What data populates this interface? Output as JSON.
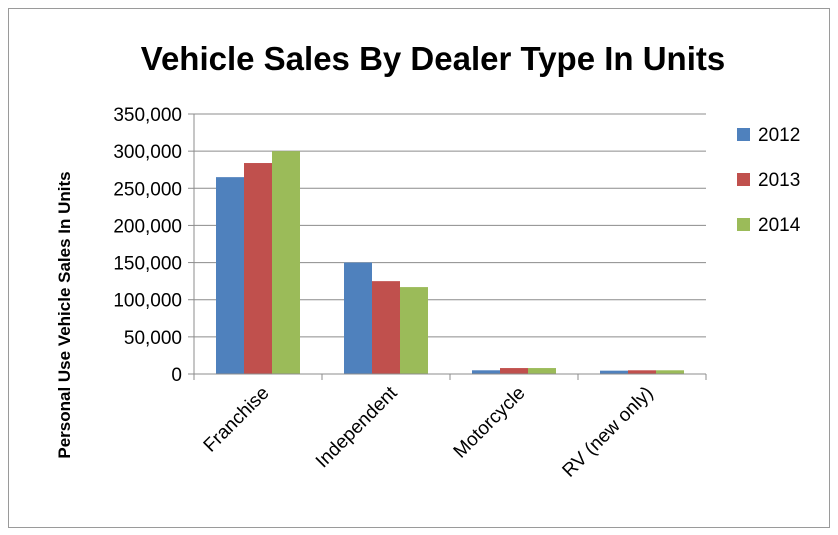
{
  "chart_data": {
    "type": "bar",
    "title": "Vehicle Sales By Dealer Type In Units",
    "xlabel": "",
    "ylabel": "Personal Use Vehicle Sales In Units",
    "categories": [
      "Franchise",
      "Independent",
      "Motorcycle",
      "RV (new only)"
    ],
    "series": [
      {
        "name": "2012",
        "color": "#4f81bd",
        "values": [
          265000,
          150000,
          5000,
          4500
        ]
      },
      {
        "name": "2013",
        "color": "#c0504d",
        "values": [
          284000,
          125000,
          8000,
          5000
        ]
      },
      {
        "name": "2014",
        "color": "#9bbb59",
        "values": [
          300000,
          117000,
          8000,
          5000
        ]
      }
    ],
    "ylim": [
      0,
      350000
    ],
    "yticks": [
      0,
      50000,
      100000,
      150000,
      200000,
      250000,
      300000,
      350000
    ],
    "ytick_labels": [
      "0",
      "50,000",
      "100,000",
      "150,000",
      "200,000",
      "250,000",
      "300,000",
      "350,000"
    ],
    "grid": true,
    "legend_position": "right"
  }
}
